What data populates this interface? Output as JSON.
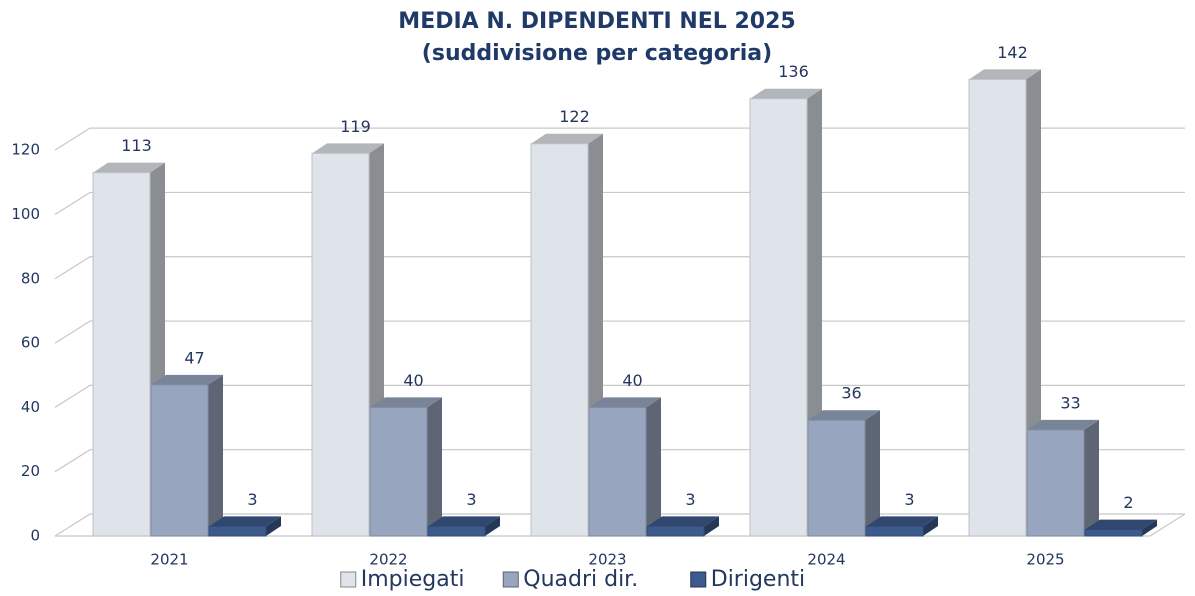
{
  "chart_data": {
    "type": "bar3d",
    "title": "MEDIA N. DIPENDENTI NEL 2025",
    "subtitle": "(suddivisione per categoria)",
    "categories": [
      "2021",
      "2022",
      "2023",
      "2024",
      "2025"
    ],
    "series": [
      {
        "name": "Impiegati",
        "color": "#dfe3ea",
        "values": [
          113,
          119,
          122,
          136,
          142
        ]
      },
      {
        "name": "Quadri dir.",
        "color": "#97a5bf",
        "values": [
          47,
          40,
          40,
          36,
          33
        ]
      },
      {
        "name": "Dirigenti",
        "color": "#3c5a8c",
        "values": [
          3,
          3,
          3,
          3,
          2
        ]
      }
    ],
    "ylim": [
      0,
      130
    ],
    "yticks": [
      0,
      20,
      40,
      60,
      80,
      100,
      120
    ],
    "grid": true,
    "legend": "bottom"
  }
}
